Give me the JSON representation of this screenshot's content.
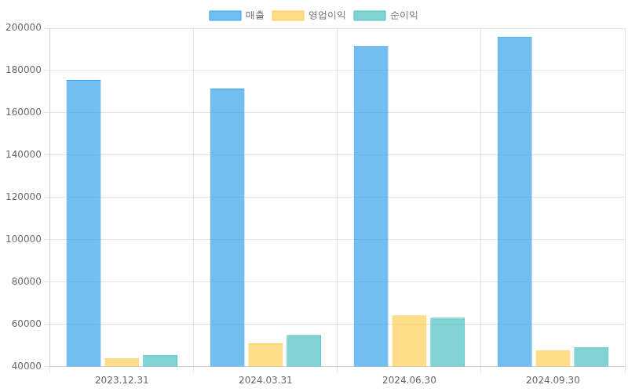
{
  "chart_data": {
    "type": "bar",
    "categories": [
      "2023.12.31",
      "2024.03.31",
      "2024.06.30",
      "2024.09.30"
    ],
    "series": [
      {
        "name": "매출",
        "color": "#36a2eb",
        "values": [
          175500,
          171500,
          191600,
          196000
        ]
      },
      {
        "name": "영업이익",
        "color": "#ffcd56",
        "values": [
          44000,
          51000,
          64200,
          47700
        ]
      },
      {
        "name": "순이익",
        "color": "#4bc0c0",
        "values": [
          45500,
          55000,
          63100,
          49200
        ]
      }
    ],
    "ylim": [
      40000,
      200000
    ],
    "yticks": [
      40000,
      60000,
      80000,
      100000,
      120000,
      140000,
      160000,
      180000,
      200000
    ],
    "grid": true,
    "legend": "top"
  }
}
